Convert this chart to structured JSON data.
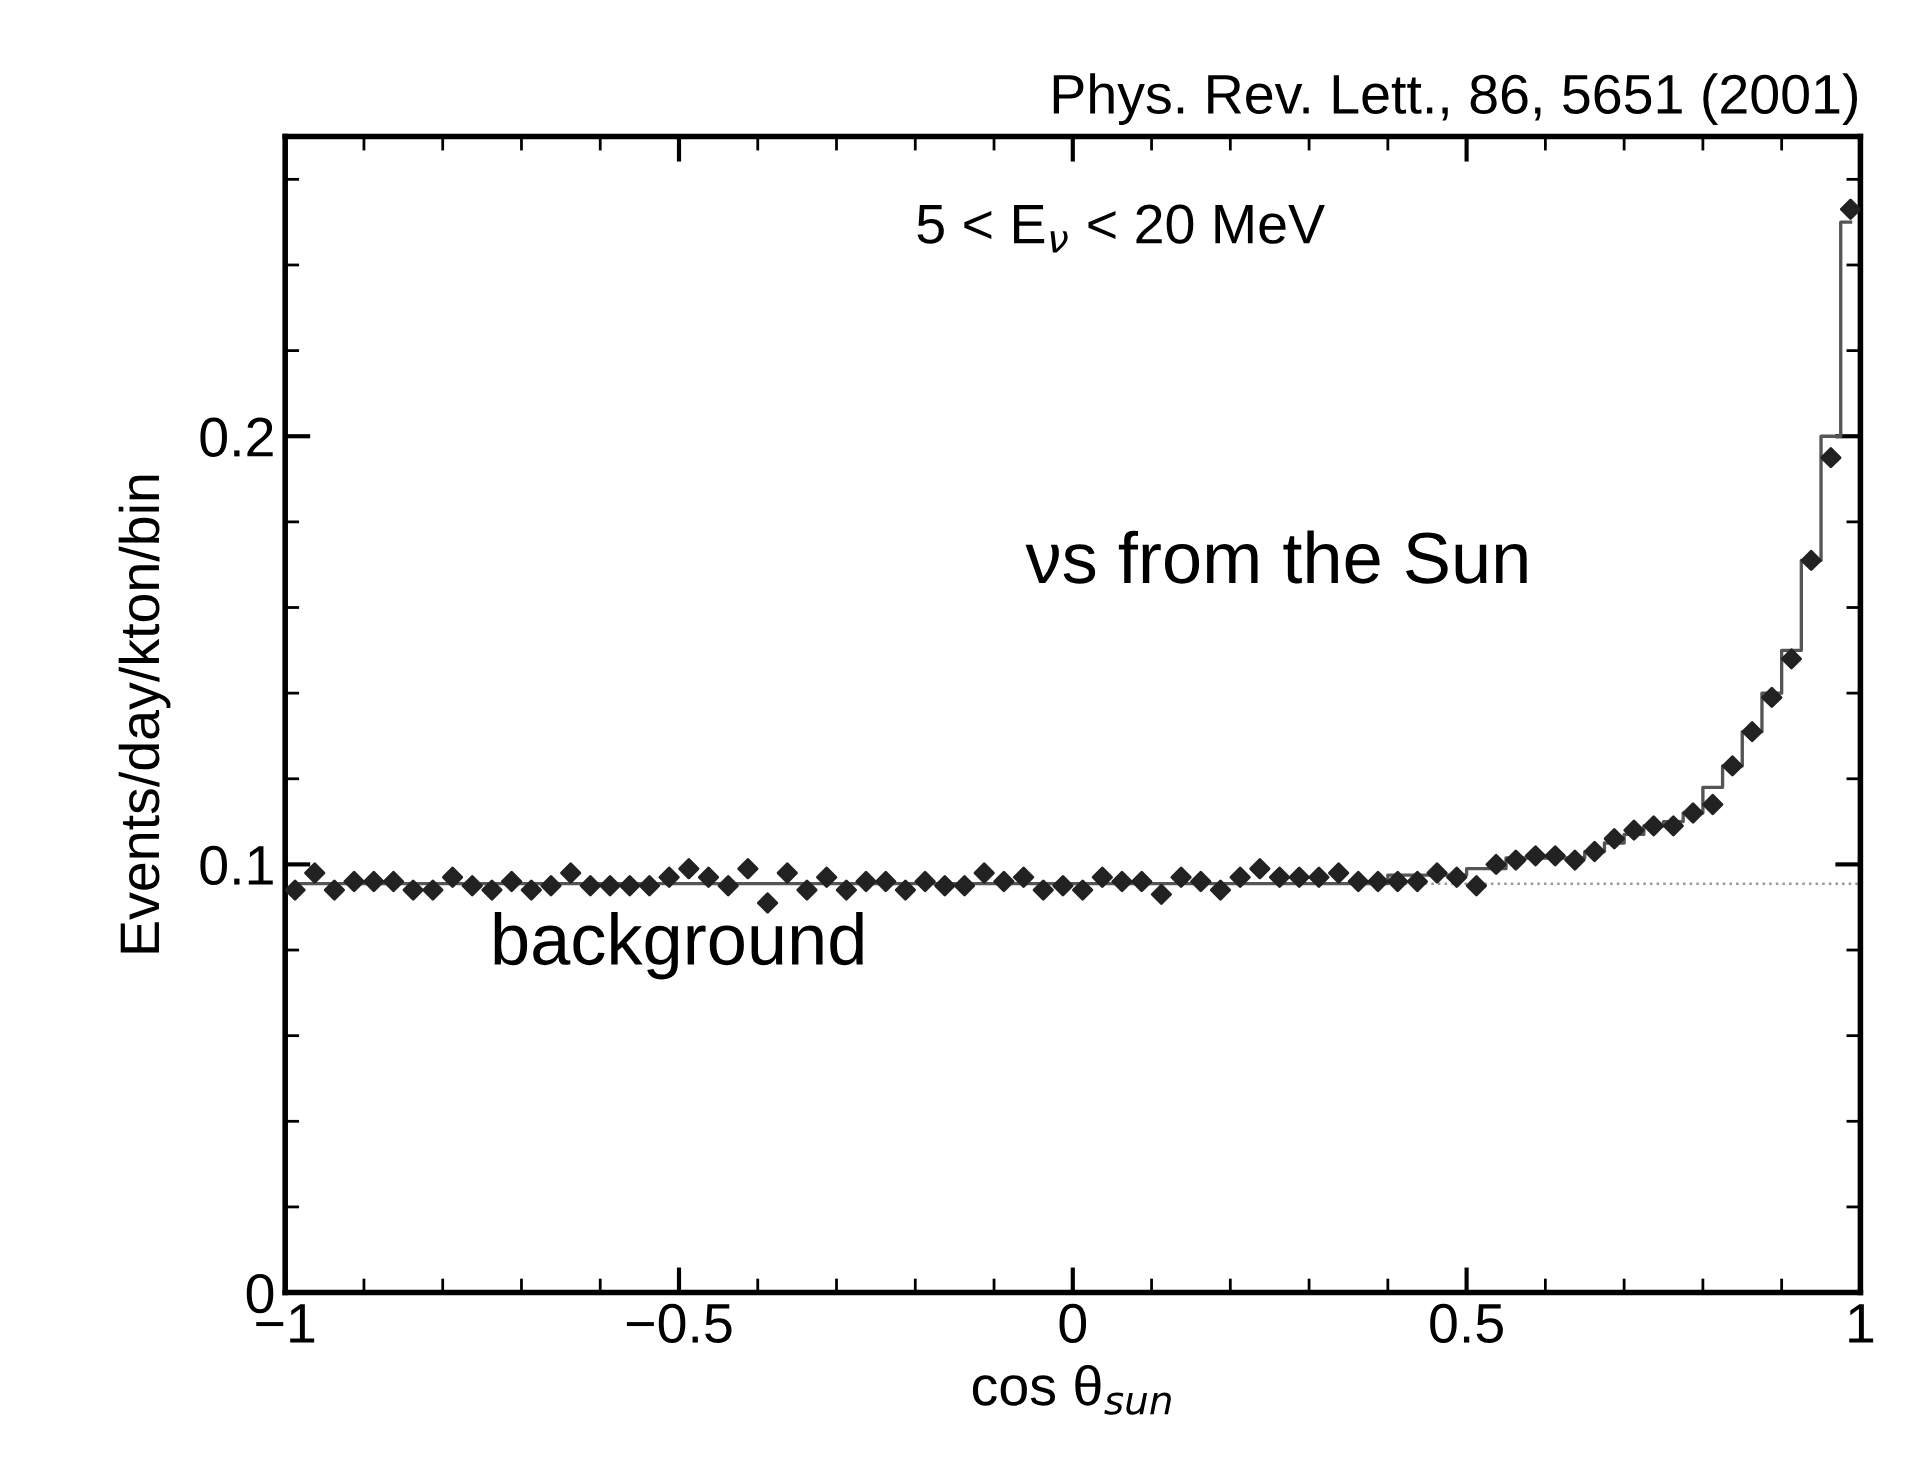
{
  "chart_data": {
    "type": "scatter",
    "xlabel": "cos θ$_{sun}$",
    "ylabel": "Events/day/kton/bin",
    "annotations": [
      "Phys. Rev. Lett., 86, 5651 (2001)",
      "5 < E$_{ν}$ < 20 MeV",
      "νs from the Sun",
      "background"
    ],
    "xlim": [
      -1,
      1
    ],
    "ylim": [
      0,
      0.27
    ],
    "xticks": [
      {
        "value": -1,
        "label": "−1"
      },
      {
        "value": -0.5,
        "label": "−0.5"
      },
      0,
      0.5,
      1
    ],
    "yticks": [
      0,
      0.1,
      0.2
    ],
    "grid": false,
    "legend": false,
    "ref_lines": [
      {
        "axis": "y",
        "value": 0.0955,
        "color": "#999999",
        "line_style": "dotted"
      }
    ],
    "series": [
      {
        "color": "#222222",
        "marker": "diamond",
        "x": [
          -0.9875,
          -0.9625,
          -0.9375,
          -0.9125,
          -0.8875,
          -0.8625,
          -0.8375,
          -0.8125,
          -0.7875,
          -0.7625,
          -0.7375,
          -0.7125,
          -0.6875,
          -0.6625,
          -0.6375,
          -0.6125,
          -0.5875,
          -0.5625,
          -0.5375,
          -0.5125,
          -0.4875,
          -0.4625,
          -0.4375,
          -0.4125,
          -0.3875,
          -0.3625,
          -0.3375,
          -0.3125,
          -0.2875,
          -0.2625,
          -0.2375,
          -0.2125,
          -0.1875,
          -0.1625,
          -0.1375,
          -0.1125,
          -0.0875,
          -0.0625,
          -0.0375,
          -0.0125,
          0.0125,
          0.0375,
          0.0625,
          0.0875,
          0.1125,
          0.1375,
          0.1625,
          0.1875,
          0.2125,
          0.2375,
          0.2625,
          0.2875,
          0.3125,
          0.3375,
          0.3625,
          0.3875,
          0.4125,
          0.4375,
          0.4625,
          0.4875,
          0.5125,
          0.5375,
          0.5625,
          0.5875,
          0.6125,
          0.6375,
          0.6625,
          0.6875,
          0.7125,
          0.7375,
          0.7625,
          0.7875,
          0.8125,
          0.8375,
          0.8625,
          0.8875,
          0.9125,
          0.9375,
          0.9625,
          0.9875
        ],
        "values": [
          0.094,
          0.098,
          0.094,
          0.096,
          0.096,
          0.096,
          0.094,
          0.094,
          0.097,
          0.095,
          0.094,
          0.096,
          0.094,
          0.095,
          0.098,
          0.095,
          0.095,
          0.095,
          0.095,
          0.097,
          0.099,
          0.097,
          0.095,
          0.099,
          0.091,
          0.098,
          0.094,
          0.097,
          0.094,
          0.096,
          0.096,
          0.094,
          0.096,
          0.095,
          0.095,
          0.098,
          0.096,
          0.097,
          0.094,
          0.095,
          0.094,
          0.097,
          0.096,
          0.096,
          0.093,
          0.097,
          0.096,
          0.094,
          0.097,
          0.099,
          0.097,
          0.097,
          0.097,
          0.098,
          0.096,
          0.096,
          0.096,
          0.096,
          0.098,
          0.097,
          0.095,
          0.1,
          0.101,
          0.102,
          0.102,
          0.101,
          0.103,
          0.106,
          0.108,
          0.109,
          0.109,
          0.112,
          0.114,
          0.123,
          0.131,
          0.139,
          0.148,
          0.171,
          0.195,
          0.253
        ]
      },
      {
        "type": "step",
        "color": "#555555",
        "line_style": "solid",
        "marker": "none",
        "x": [
          -0.9875,
          -0.9625,
          -0.9375,
          -0.9125,
          -0.8875,
          -0.8625,
          -0.8375,
          -0.8125,
          -0.7875,
          -0.7625,
          -0.7375,
          -0.7125,
          -0.6875,
          -0.6625,
          -0.6375,
          -0.6125,
          -0.5875,
          -0.5625,
          -0.5375,
          -0.5125,
          -0.4875,
          -0.4625,
          -0.4375,
          -0.4125,
          -0.3875,
          -0.3625,
          -0.3375,
          -0.3125,
          -0.2875,
          -0.2625,
          -0.2375,
          -0.2125,
          -0.1875,
          -0.1625,
          -0.1375,
          -0.1125,
          -0.0875,
          -0.0625,
          -0.0375,
          -0.0125,
          0.0125,
          0.0375,
          0.0625,
          0.0875,
          0.1125,
          0.1375,
          0.1625,
          0.1875,
          0.2125,
          0.2375,
          0.2625,
          0.2875,
          0.3125,
          0.3375,
          0.3625,
          0.3875,
          0.4125,
          0.4375,
          0.4625,
          0.4875,
          0.5125,
          0.5375,
          0.5625,
          0.5875,
          0.6125,
          0.6375,
          0.6625,
          0.6875,
          0.7125,
          0.7375,
          0.7625,
          0.7875,
          0.8125,
          0.8375,
          0.8625,
          0.8875,
          0.9125,
          0.9375,
          0.9625,
          0.9875
        ],
        "values": [
          0.0955,
          0.0955,
          0.0955,
          0.0955,
          0.0955,
          0.0955,
          0.0955,
          0.0955,
          0.0955,
          0.0955,
          0.0955,
          0.0955,
          0.0955,
          0.0955,
          0.0955,
          0.0955,
          0.0955,
          0.0955,
          0.0955,
          0.0955,
          0.0955,
          0.0955,
          0.0955,
          0.0955,
          0.0955,
          0.0955,
          0.0955,
          0.0955,
          0.0955,
          0.0955,
          0.0955,
          0.0955,
          0.0955,
          0.0955,
          0.0955,
          0.0955,
          0.0955,
          0.0955,
          0.0955,
          0.0955,
          0.0955,
          0.0955,
          0.0955,
          0.0955,
          0.0955,
          0.0955,
          0.0955,
          0.0955,
          0.0955,
          0.0955,
          0.0955,
          0.0955,
          0.0955,
          0.0955,
          0.0955,
          0.0955,
          0.0975,
          0.0975,
          0.0975,
          0.0975,
          0.099,
          0.099,
          0.1015,
          0.1015,
          0.1015,
          0.1015,
          0.103,
          0.105,
          0.107,
          0.109,
          0.11,
          0.112,
          0.118,
          0.123,
          0.131,
          0.14,
          0.15,
          0.171,
          0.2,
          0.25
        ]
      }
    ]
  }
}
